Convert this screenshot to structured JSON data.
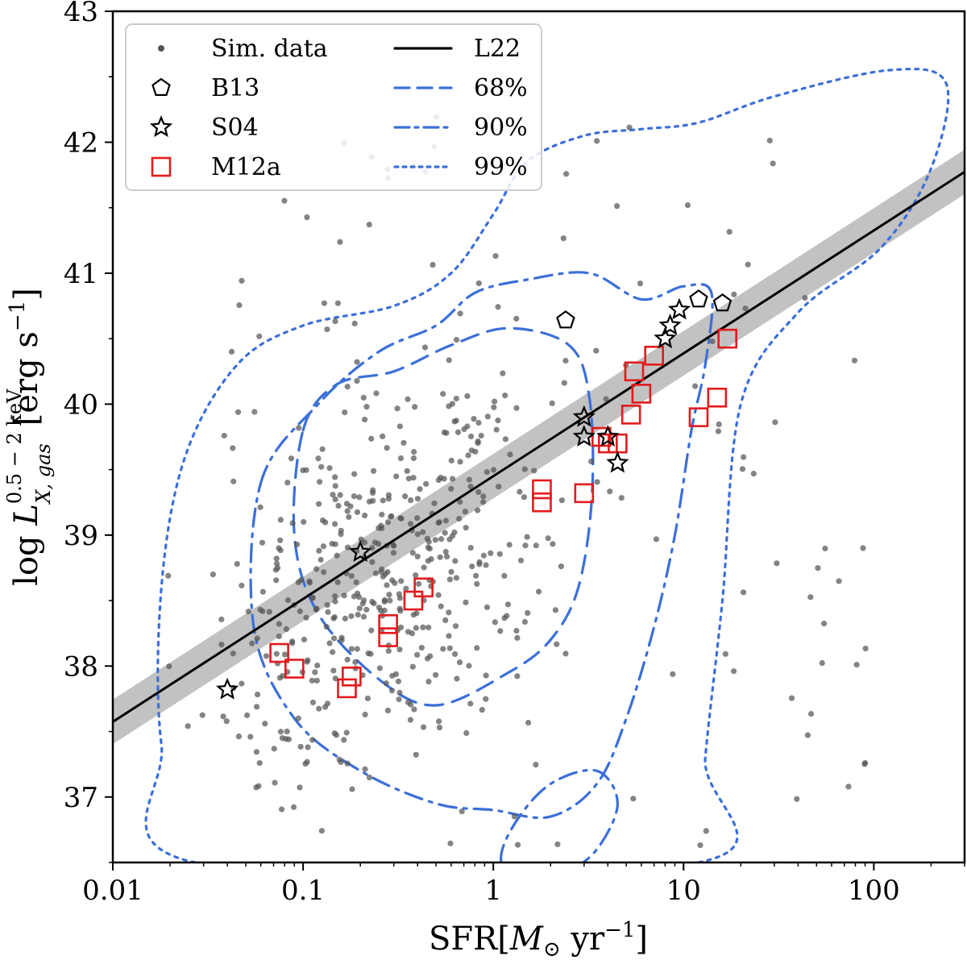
{
  "chart_data": {
    "type": "scatter",
    "x_scale": "log",
    "xlim": [
      0.01,
      300
    ],
    "ylim": [
      36.5,
      43
    ],
    "xticks": [
      {
        "value": 0.01,
        "label": "0.01"
      },
      {
        "value": 0.1,
        "label": "0.1"
      },
      {
        "value": 1,
        "label": "1"
      },
      {
        "value": 10,
        "label": "10"
      },
      {
        "value": 100,
        "label": "100"
      }
    ],
    "yticks": [
      {
        "value": 37,
        "label": "37"
      },
      {
        "value": 38,
        "label": "38"
      },
      {
        "value": 39,
        "label": "39"
      },
      {
        "value": 40,
        "label": "40"
      },
      {
        "value": 41,
        "label": "41"
      },
      {
        "value": 42,
        "label": "42"
      },
      {
        "value": 43,
        "label": "43"
      }
    ],
    "xlabel": {
      "main": "SFR",
      "inner": "M",
      "sub": "⊙",
      "unit": " yr",
      "exp": "−1"
    },
    "ylabel": {
      "log": "log ",
      "var": "L",
      "sup": "0.5 − 2 keV",
      "sub": "X, gas",
      "unit": "[erg s",
      "exp": "−1",
      "close": "]"
    },
    "legend": [
      {
        "label": "Sim. data",
        "marker": "dot",
        "color": "#555555"
      },
      {
        "label": "B13",
        "marker": "pentagon",
        "color": "#000000"
      },
      {
        "label": "S04",
        "marker": "star",
        "color": "#000000"
      },
      {
        "label": "M12a",
        "marker": "square",
        "color": "#e41a1c"
      },
      {
        "label": "L22",
        "marker": "solid",
        "color": "#000000"
      },
      {
        "label": "68%",
        "marker": "dashed",
        "color": "#3b6fd9"
      },
      {
        "label": "90%",
        "marker": "dashdot",
        "color": "#3b6fd9"
      },
      {
        "label": "99%",
        "marker": "dotted",
        "color": "#3b6fd9"
      }
    ],
    "fit_L22": {
      "slope": 0.938,
      "intercept": 39.45,
      "band_halfwidth": 0.17,
      "color": "#000000",
      "band_color": "#bbbbbb"
    },
    "B13": [
      [
        2.4,
        40.64
      ],
      [
        12,
        40.8
      ],
      [
        16,
        40.77
      ]
    ],
    "S04": [
      [
        0.04,
        37.82
      ],
      [
        0.2,
        38.87
      ],
      [
        3,
        39.9
      ],
      [
        3,
        39.75
      ],
      [
        4,
        39.75
      ],
      [
        4.5,
        39.55
      ],
      [
        8,
        40.5
      ],
      [
        8.5,
        40.6
      ],
      [
        9.5,
        40.72
      ]
    ],
    "M12a": [
      [
        0.075,
        38.1
      ],
      [
        0.09,
        37.98
      ],
      [
        0.17,
        37.83
      ],
      [
        0.18,
        37.92
      ],
      [
        0.28,
        38.22
      ],
      [
        0.28,
        38.32
      ],
      [
        0.38,
        38.5
      ],
      [
        0.43,
        38.6
      ],
      [
        1.8,
        39.25
      ],
      [
        1.8,
        39.35
      ],
      [
        3,
        39.32
      ],
      [
        3.7,
        39.75
      ],
      [
        4,
        39.7
      ],
      [
        4.5,
        39.7
      ],
      [
        5.3,
        39.92
      ],
      [
        5.5,
        40.25
      ],
      [
        6,
        40.08
      ],
      [
        7,
        40.37
      ],
      [
        12,
        39.9
      ],
      [
        15,
        40.05
      ],
      [
        17,
        40.5
      ]
    ],
    "contours": {
      "68%": [
        [
          0.1,
          39.8
        ],
        [
          0.15,
          40.15
        ],
        [
          0.3,
          40.25
        ],
        [
          0.6,
          40.45
        ],
        [
          1.2,
          40.58
        ],
        [
          2.5,
          40.45
        ],
        [
          3.2,
          40.05
        ],
        [
          3.3,
          39.3
        ],
        [
          2.8,
          38.6
        ],
        [
          2.0,
          38.2
        ],
        [
          1.2,
          37.95
        ],
        [
          0.5,
          37.7
        ],
        [
          0.25,
          37.9
        ],
        [
          0.12,
          38.4
        ],
        [
          0.09,
          39.0
        ]
      ],
      "90%": [
        [
          0.06,
          39.4
        ],
        [
          0.12,
          40.0
        ],
        [
          0.25,
          40.4
        ],
        [
          0.5,
          40.6
        ],
        [
          0.8,
          40.85
        ],
        [
          1.5,
          40.95
        ],
        [
          3.2,
          41.0
        ],
        [
          6,
          40.8
        ],
        [
          10,
          40.9
        ],
        [
          14,
          40.85
        ],
        [
          13,
          40.3
        ],
        [
          11,
          39.8
        ],
        [
          9,
          39.0
        ],
        [
          7,
          38.3
        ],
        [
          5,
          37.6
        ],
        [
          3.5,
          37.1
        ],
        [
          2,
          36.85
        ],
        [
          1,
          36.9
        ],
        [
          0.5,
          36.95
        ],
        [
          0.2,
          37.2
        ],
        [
          0.09,
          37.6
        ],
        [
          0.055,
          38.3
        ]
      ],
      "90%_island": [
        [
          1.1,
          36.5
        ],
        [
          1.3,
          36.8
        ],
        [
          2,
          37.1
        ],
        [
          3.5,
          37.2
        ],
        [
          4.5,
          36.95
        ],
        [
          3.5,
          36.6
        ],
        [
          2.3,
          36.4
        ],
        [
          1.5,
          36.3
        ]
      ],
      "99%": [
        [
          0.027,
          36.5
        ],
        [
          0.018,
          37.4
        ],
        [
          0.018,
          38.6
        ],
        [
          0.024,
          39.6
        ],
        [
          0.045,
          40.3
        ],
        [
          0.1,
          40.6
        ],
        [
          0.3,
          40.75
        ],
        [
          0.6,
          41.0
        ],
        [
          1.0,
          41.45
        ],
        [
          1.5,
          41.85
        ],
        [
          3,
          42.05
        ],
        [
          6,
          42.1
        ],
        [
          12,
          42.15
        ],
        [
          30,
          42.35
        ],
        [
          120,
          42.55
        ],
        [
          240,
          42.45
        ],
        [
          200,
          41.8
        ],
        [
          110,
          41.2
        ],
        [
          40,
          40.7
        ],
        [
          20,
          40.0
        ],
        [
          16,
          38.5
        ],
        [
          13,
          37.3
        ],
        [
          12,
          36.5
        ]
      ]
    },
    "contour_color": "#3b6fd9",
    "marker_colors": {
      "sim": "#555555",
      "B13": "#000000",
      "S04": "#000000",
      "M12a": "#e41a1c"
    }
  }
}
